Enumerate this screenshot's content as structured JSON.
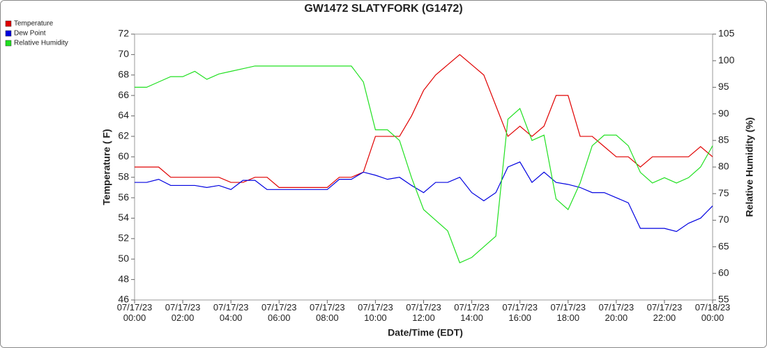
{
  "chart_data": {
    "type": "line",
    "title": "GW1472 SLATYFORK (G1472)",
    "xlabel": "Date/Time (EDT)",
    "ylabel": "Temperature ( F)",
    "y2label": "Relative Humidity (%)",
    "x": [
      0,
      0.5,
      1,
      1.5,
      2,
      2.5,
      3,
      3.5,
      4,
      4.5,
      5,
      5.5,
      6,
      6.5,
      7,
      7.5,
      8,
      8.5,
      9,
      9.5,
      10,
      10.5,
      11,
      11.5,
      12,
      12.5,
      13,
      13.5,
      14,
      14.5,
      15,
      15.5,
      16,
      16.5,
      17,
      17.5,
      18,
      18.5,
      19,
      19.5,
      20,
      20.5,
      21,
      21.5,
      22,
      22.5,
      23,
      23.5,
      24
    ],
    "series": [
      {
        "name": "Temperature",
        "color": "#e00000",
        "axis": "y",
        "values": [
          59,
          59,
          59,
          58,
          58,
          58,
          58,
          58,
          57.5,
          57.5,
          58,
          58,
          57,
          57,
          57,
          57,
          57,
          58,
          58,
          58.5,
          62,
          62,
          62,
          64,
          66.5,
          68,
          69,
          70,
          69,
          68,
          65,
          62,
          63,
          62,
          63,
          66,
          66,
          62,
          62,
          61,
          60,
          60,
          59,
          60,
          60,
          60,
          60,
          61,
          60
        ]
      },
      {
        "name": "Dew Point",
        "color": "#0000e0",
        "axis": "y",
        "values": [
          57.5,
          57.5,
          57.8,
          57.2,
          57.2,
          57.2,
          57,
          57.2,
          56.8,
          57.7,
          57.7,
          56.8,
          56.8,
          56.8,
          56.8,
          56.8,
          56.8,
          57.8,
          57.8,
          58.5,
          58.2,
          57.8,
          58,
          57.2,
          56.5,
          57.5,
          57.5,
          58,
          56.5,
          55.7,
          56.5,
          59,
          59.5,
          57.5,
          58.5,
          57.5,
          57.3,
          57,
          56.5,
          56.5,
          56,
          55.5,
          53,
          53,
          53,
          52.7,
          53.5,
          54,
          55.2
        ]
      },
      {
        "name": "Relative Humidity",
        "color": "#20e020",
        "axis": "y2",
        "values": [
          95,
          95,
          96,
          97,
          97,
          98,
          96.5,
          97.5,
          98,
          98.5,
          99,
          99,
          99,
          99,
          99,
          99,
          99,
          99,
          99,
          96,
          87,
          87,
          85,
          78,
          72,
          70,
          68,
          62,
          63,
          65,
          67,
          89,
          91,
          85,
          86,
          74,
          72,
          77,
          84,
          86,
          86,
          84,
          79,
          77,
          78,
          77,
          78,
          80,
          84
        ]
      }
    ],
    "xlim": [
      0,
      24
    ],
    "xticks": [
      {
        "value": 0,
        "label": "07/17/23\n00:00"
      },
      {
        "value": 2,
        "label": "07/17/23\n02:00"
      },
      {
        "value": 4,
        "label": "07/17/23\n04:00"
      },
      {
        "value": 6,
        "label": "07/17/23\n06:00"
      },
      {
        "value": 8,
        "label": "07/17/23\n08:00"
      },
      {
        "value": 10,
        "label": "07/17/23\n10:00"
      },
      {
        "value": 12,
        "label": "07/17/23\n12:00"
      },
      {
        "value": 14,
        "label": "07/17/23\n14:00"
      },
      {
        "value": 16,
        "label": "07/17/23\n16:00"
      },
      {
        "value": 18,
        "label": "07/17/23\n18:00"
      },
      {
        "value": 20,
        "label": "07/17/23\n20:00"
      },
      {
        "value": 22,
        "label": "07/17/23\n22:00"
      },
      {
        "value": 24,
        "label": "07/18/23\n00:00"
      }
    ],
    "ylim": [
      46,
      72
    ],
    "yticks": [
      46,
      48,
      50,
      52,
      54,
      56,
      58,
      60,
      62,
      64,
      66,
      68,
      70,
      72
    ],
    "y2lim": [
      55,
      105
    ],
    "y2ticks": [
      55,
      60,
      65,
      70,
      75,
      80,
      85,
      90,
      95,
      100,
      105
    ],
    "legend": "top-left"
  }
}
